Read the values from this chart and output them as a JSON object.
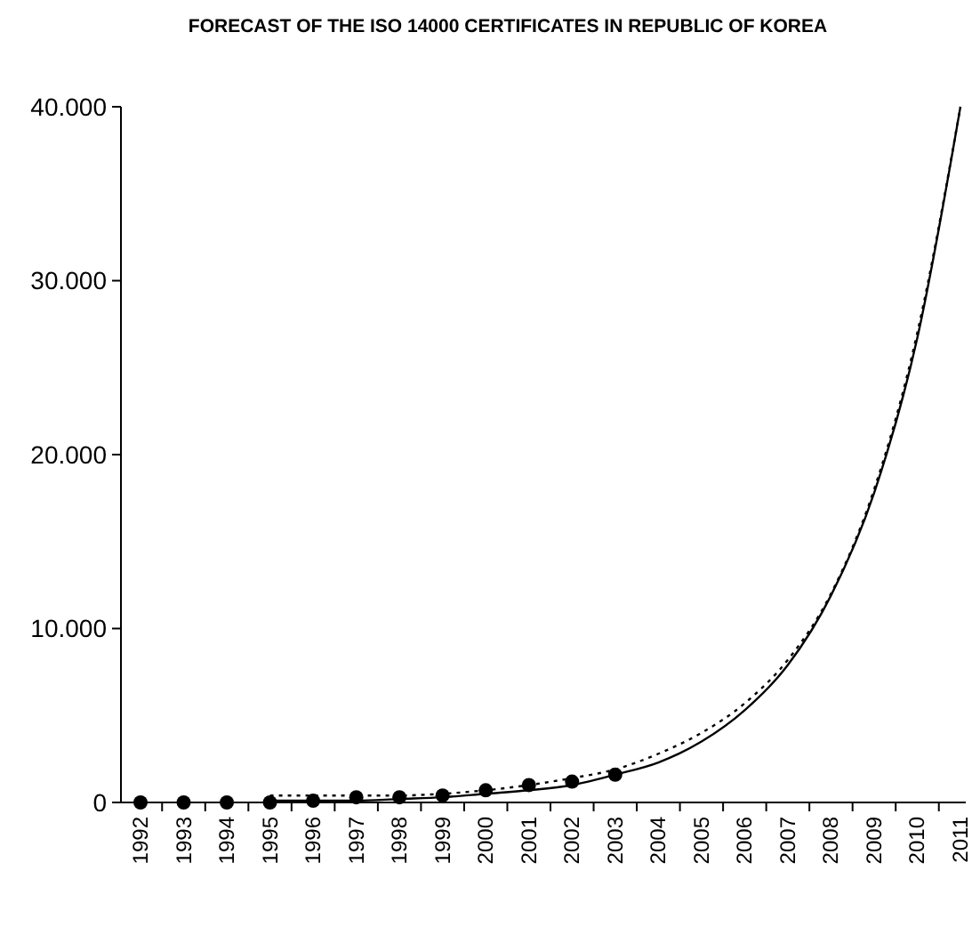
{
  "chart_data": {
    "type": "line",
    "title": "FORECAST OF THE ISO 14000 CERTIFICATES IN REPUBLIC OF KOREA",
    "categories": [
      "1992",
      "1993",
      "1994",
      "1995",
      "1996",
      "1997",
      "1998",
      "1999",
      "2000",
      "2001",
      "2002",
      "2003",
      "2004",
      "2005",
      "2006",
      "2007",
      "2008",
      "2009",
      "2010",
      "2011"
    ],
    "series": [
      {
        "type": "scatter",
        "color": "#000000",
        "marker": "circle",
        "values": [
          0,
          0,
          0,
          0,
          100,
          300,
          300,
          400,
          700,
          1000,
          1200,
          1600,
          null,
          null,
          null,
          null,
          null,
          null,
          null,
          null
        ]
      },
      {
        "color": "#000000",
        "line_style": "solid",
        "values": [
          null,
          null,
          null,
          100,
          100,
          100,
          200,
          300,
          500,
          700,
          1000,
          1600,
          2300,
          3500,
          5300,
          7900,
          11900,
          17800,
          26700,
          40000
        ]
      },
      {
        "color": "#000000",
        "line_style": "dotted",
        "values": [
          null,
          null,
          null,
          400,
          400,
          400,
          400,
          500,
          700,
          1000,
          1400,
          1900,
          2800,
          4000,
          5700,
          8200,
          12000,
          18000,
          27000,
          40000
        ]
      }
    ],
    "ylim": [
      0,
      40000
    ],
    "yticks": [
      {
        "value": 0,
        "label": "0"
      },
      {
        "value": 10000,
        "label": "10.000"
      },
      {
        "value": 20000,
        "label": "20.000"
      },
      {
        "value": 30000,
        "label": "30.000"
      },
      {
        "value": 40000,
        "label": "40.000"
      }
    ],
    "grid": false
  }
}
